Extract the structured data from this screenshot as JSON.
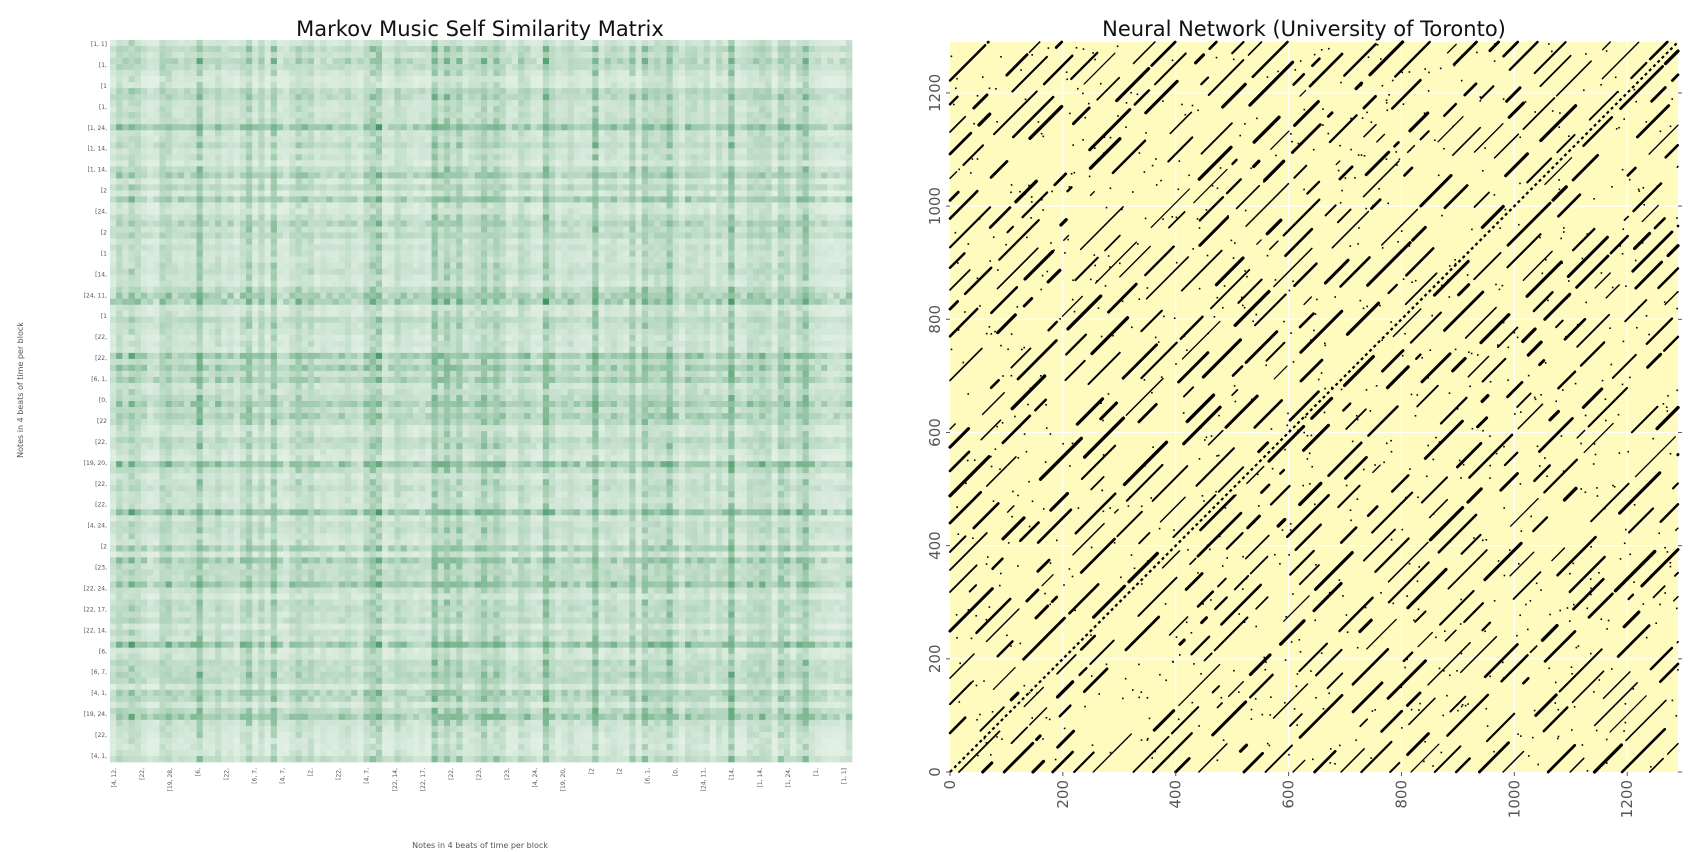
{
  "chart_data": [
    {
      "type": "heatmap",
      "title": "Markov Music Self Similarity Matrix",
      "xlabel": "Notes in 4 beats of time per block",
      "ylabel": "Notes in 4 beats of time per block",
      "colormap": "Greens",
      "colors": {
        "low": "#f7fcf5",
        "high": "#00702e"
      },
      "grid": false,
      "y_tick_labels": [
        "[1, 1]",
        "[1,",
        "[1",
        "[1,",
        "[1, 24,",
        "[1, 14,",
        "[1, 14,",
        "[2",
        "[24,",
        "[2",
        "[1",
        "[14,",
        "[24, 11,",
        "[1",
        "[22,",
        "[22,",
        "[6, 1,",
        "[0,",
        "[22",
        "[22,",
        "[19, 20,",
        "[22,",
        "[22,",
        "[4, 24,",
        "[2",
        "[23,",
        "[22, 24,",
        "[22, 17,",
        "[22, 14,",
        "[6,",
        "[6, 7,",
        "[4, 1,",
        "[19, 24,",
        "[22,",
        "[4, 1,"
      ],
      "x_tick_labels": [
        "[4, 12,",
        "[22,",
        "[19, 28,",
        "[6,",
        "[22,",
        "[6, 7,",
        "[4, 7,",
        "[2,",
        "[22,",
        "[4, 7,",
        "[22, 14,",
        "[22, 17,",
        "[22,",
        "[23,",
        "[23,",
        "[4, 24,",
        "[19, 20,",
        "[2",
        "[2",
        "[6, 1,",
        "[0,",
        "[24, 11,",
        "[14,",
        "[1, 14,",
        "[1, 24,",
        "[1,",
        "[1, 1]"
      ]
    },
    {
      "type": "heatmap",
      "title": "Neural Network (University of Toronto)",
      "colormap": "binary-on-yellow",
      "colors": {
        "background": "#fffabe",
        "mark": "#000000",
        "gridline": "#ffffff"
      },
      "grid": true,
      "xlim": [
        0,
        1290
      ],
      "ylim": [
        0,
        1290
      ],
      "x_ticks": [
        0,
        200,
        400,
        600,
        800,
        1000,
        1200
      ],
      "y_ticks": [
        0,
        200,
        400,
        600,
        800,
        1000,
        1200
      ]
    }
  ]
}
